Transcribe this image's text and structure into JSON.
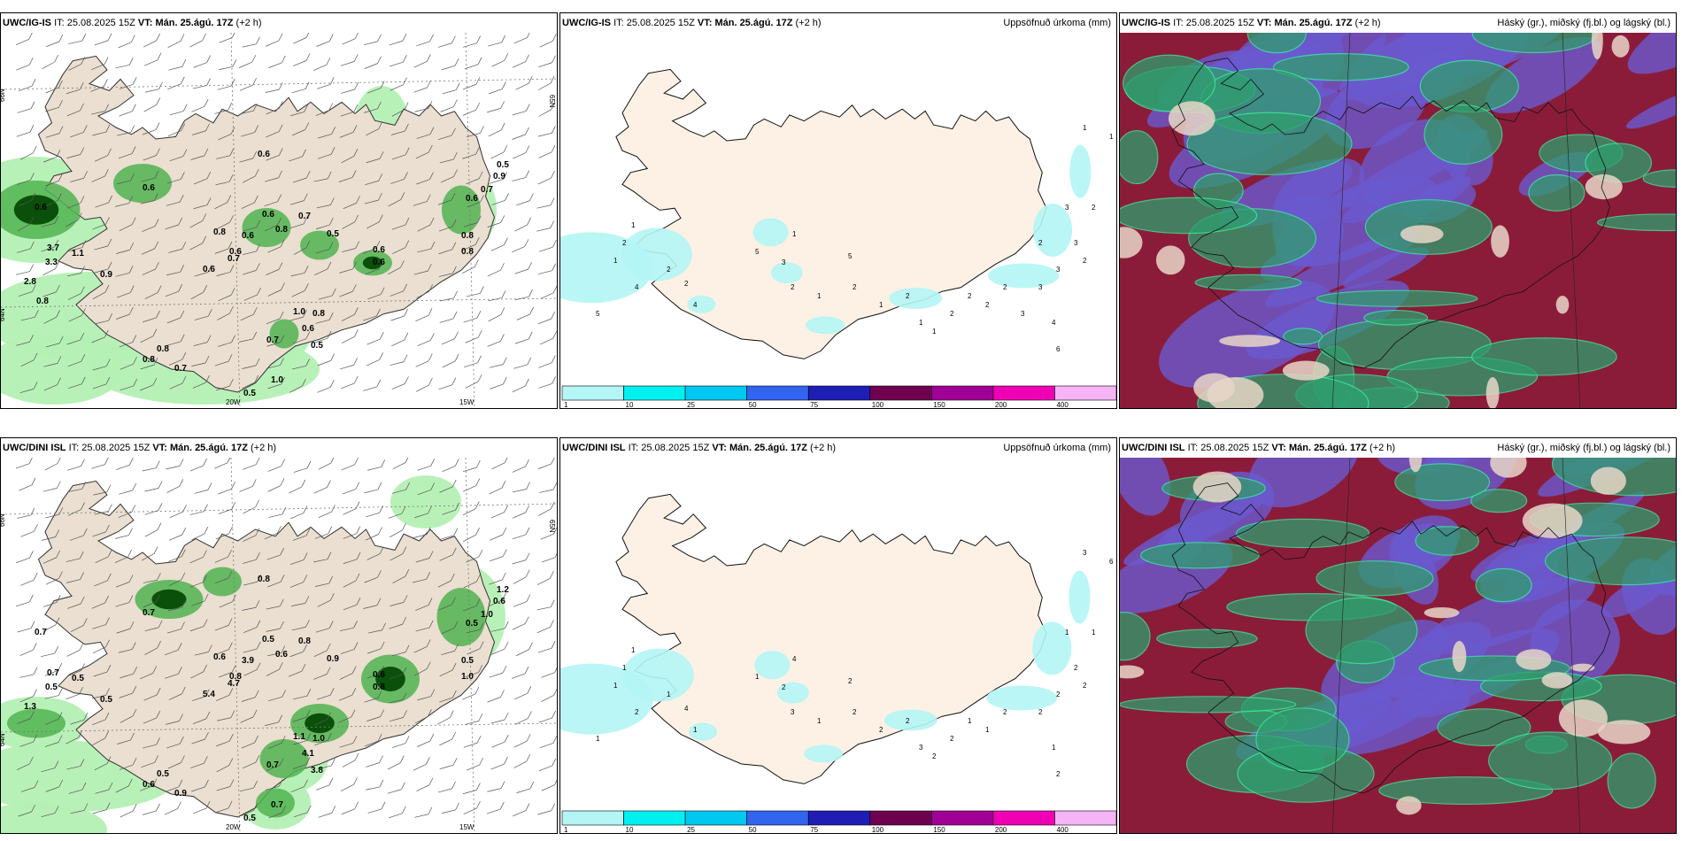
{
  "panels": {
    "p1": {
      "model": "UWC/IG-IS",
      "it_label": "IT:",
      "it_value": "25.08.2025 15Z",
      "vt_label": "VT:",
      "vt_value": "Mán. 25.ágú. 17Z",
      "lead": "(+2 h)",
      "right_title": "",
      "values": [
        "0.6",
        "0.6",
        "0.6",
        "0.6",
        "0.8",
        "0.7",
        "0.8",
        "0.6",
        "0.6",
        "0.5",
        "0.6",
        "0.6",
        "0.7",
        "0.9",
        "0.5",
        "0.8",
        "0.8",
        "0.6",
        "0.7",
        "1.0",
        "0.8",
        "0.6",
        "0.5",
        "0.6",
        "0.7",
        "0.8",
        "0.5",
        "1.0",
        "0.7",
        "0.8",
        "3.7",
        "3.3",
        "2.8",
        "0.9",
        "1.1",
        "0.8"
      ],
      "grid": {
        "lat_top": "66N",
        "lat_bottom": "64N",
        "lon_left": "20W",
        "lon_right": "15W",
        "lat_right": "65N"
      }
    },
    "p2": {
      "model": "UWC/IG-IS",
      "it_label": "IT:",
      "it_value": "25.08.2025 15Z",
      "vt_label": "VT:",
      "vt_value": "Mán. 25.ágú. 17Z",
      "lead": "(+2 h)",
      "right_title": "Uppsöfnuð úrkoma (mm)",
      "values": [
        "2",
        "1",
        "1",
        "5",
        "4",
        "2",
        "2",
        "4",
        "5",
        "3",
        "2",
        "1",
        "1",
        "5",
        "2",
        "1",
        "2",
        "1",
        "1",
        "2",
        "2",
        "2",
        "2",
        "3",
        "3",
        "3",
        "2",
        "2",
        "3",
        "4",
        "6",
        "1",
        "1",
        "2",
        "3"
      ]
    },
    "p3": {
      "model": "UWC/IG-IS",
      "it_label": "IT:",
      "it_value": "25.08.2025 15Z",
      "vt_label": "VT:",
      "vt_value": "Mán. 25.ágú. 17Z",
      "lead": "(+2 h)",
      "right_title": "Háský (gr.), miðský (fj.bl.) og lágský (bl.)"
    },
    "p4": {
      "model": "UWC/DINI ISL",
      "it_label": "IT:",
      "it_value": "25.08.2025 15Z",
      "vt_label": "VT:",
      "vt_value": "Mán. 25.ágú. 17Z",
      "lead": "(+2 h)",
      "right_title": "",
      "values": [
        "0.8",
        "0.7",
        "0.7",
        "0.5",
        "0.6",
        "0.8",
        "0.6",
        "3.9",
        "0.8",
        "0.9",
        "0.6",
        "0.5",
        "1.0",
        "0.6",
        "1.2",
        "0.5",
        "1.0",
        "0.8",
        "0.7",
        "1.1",
        "1.0",
        "4.1",
        "3.8",
        "5.4",
        "4.7",
        "0.6",
        "0.5",
        "0.7",
        "0.9",
        "0.5",
        "0.7",
        "0.5",
        "1.3",
        "0.5",
        "0.5"
      ],
      "grid": {
        "lat_top": "66N",
        "lat_bottom": "64N",
        "lon_left": "20W",
        "lon_right": "15W",
        "lat_right": "65N"
      }
    },
    "p5": {
      "model": "UWC/DINI ISL",
      "it_label": "IT:",
      "it_value": "25.08.2025 15Z",
      "vt_label": "VT:",
      "vt_value": "Mán. 25.ágú. 17Z",
      "lead": "(+2 h)",
      "right_title": "Uppsöfnuð úrkoma (mm)",
      "values": [
        "1",
        "1",
        "1",
        "1",
        "2",
        "1",
        "4",
        "1",
        "1",
        "2",
        "3",
        "4",
        "1",
        "2",
        "2",
        "2",
        "2",
        "3",
        "2",
        "2",
        "1",
        "1",
        "2",
        "2",
        "2",
        "2",
        "2",
        "1",
        "1",
        "1",
        "2",
        "3",
        "6"
      ]
    },
    "p6": {
      "model": "UWC/DINI ISL",
      "it_label": "IT:",
      "it_value": "25.08.2025 15Z",
      "vt_label": "VT:",
      "vt_value": "Mán. 25.ágú. 17Z",
      "lead": "(+2 h)",
      "right_title": "Háský (gr.), miðský (fj.bl.) og lágský (bl.)"
    }
  },
  "colorbar": {
    "ticks": [
      "1",
      "10",
      "25",
      "50",
      "75",
      "100",
      "150",
      "200",
      "400"
    ],
    "colors": [
      "#b4f5f5",
      "#00f0f0",
      "#00c8f0",
      "#3264f0",
      "#1e1eb4",
      "#6e0050",
      "#a00096",
      "#f000b4",
      "#f5b4f5"
    ]
  },
  "colors": {
    "land": "#fcf1e4",
    "land_grey": "#eadfd0",
    "precip_light": "#b4f0b4",
    "precip_mid": "#50b450",
    "precip_dark": "#0a500a",
    "cloud_high": "#2f9e6e",
    "cloud_mid": "#6a5ad0",
    "cloud_low": "#8a1c3a"
  }
}
